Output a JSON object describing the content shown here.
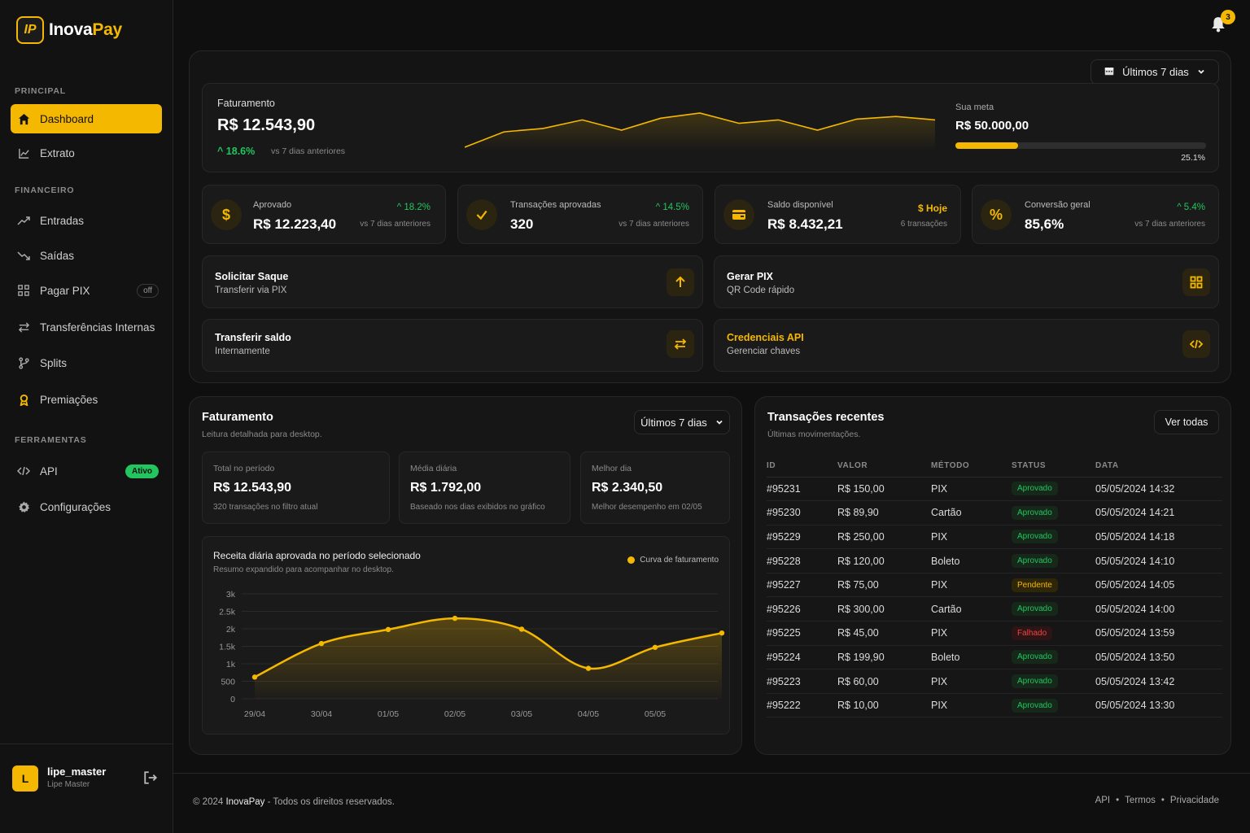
{
  "app": {
    "brand_a": "Inova",
    "brand_b": "Pay",
    "logo_letter": "IP"
  },
  "sidebar": {
    "sections": {
      "principal": "PRINCIPAL",
      "financeiro": "FINANCEIRO",
      "ferramentas": "FERRAMENTAS"
    },
    "items": [
      {
        "label": "Dashboard",
        "icon": "home-icon",
        "active": true
      },
      {
        "label": "Extrato",
        "icon": "chart-line-icon"
      },
      {
        "label": "Entradas",
        "icon": "trend-up-icon"
      },
      {
        "label": "Saídas",
        "icon": "trend-down-icon"
      },
      {
        "label": "Pagar PIX",
        "icon": "grid-icon",
        "badge": "off"
      },
      {
        "label": "Transferências Internas",
        "icon": "arrows-icon"
      },
      {
        "label": "Splits",
        "icon": "branch-icon"
      },
      {
        "label": "Premiações",
        "icon": "award-icon"
      },
      {
        "label": "API",
        "icon": "code-icon",
        "badge": "Ativo"
      },
      {
        "label": "Configurações",
        "icon": "gear-icon"
      }
    ],
    "user": {
      "initial": "L",
      "name": "lipe_master",
      "role": "Lipe Master"
    }
  },
  "header": {
    "notifications": "3"
  },
  "filter": {
    "label": "Últimos 7 dias"
  },
  "revenue": {
    "title": "Faturamento",
    "value": "R$ 12.543,90",
    "change": "18.6%",
    "change_note": "vs 7 dias anteriores",
    "goal_label": "Sua meta",
    "goal_value": "R$ 50.000,00",
    "goal_pct_text": "25.1%",
    "goal_fraction": 0.251,
    "spark": [
      40,
      58,
      62,
      72,
      60,
      74,
      80,
      68,
      72,
      60,
      73,
      76,
      72
    ]
  },
  "stats": [
    {
      "label": "Aprovado",
      "value": "R$ 12.223,40",
      "badge": "18.2%",
      "note": "vs 7 dias anteriores",
      "icon": "dollar-icon"
    },
    {
      "label": "Transações aprovadas",
      "value": "320",
      "badge": "14.5%",
      "note": "vs 7 dias anteriores",
      "icon": "check-icon"
    },
    {
      "label": "Saldo disponível",
      "value": "R$ 8.432,21",
      "badge": "$ Hoje",
      "note": "6 transações",
      "icon": "wallet-icon"
    },
    {
      "label": "Conversão geral",
      "value": "85,6%",
      "badge": "5.4%",
      "note": "vs 7 dias anteriores",
      "icon": "percent-icon"
    }
  ],
  "actions": [
    {
      "title": "Solicitar Saque",
      "sub": "Transferir via PIX",
      "icon": "arrow-up-icon"
    },
    {
      "title": "Gerar PIX",
      "sub": "QR Code rápido",
      "icon": "qr-icon"
    },
    {
      "title": "Transferir saldo",
      "sub": "Internamente",
      "icon": "swap-icon"
    },
    {
      "title": "Credenciais API",
      "sub": "Gerenciar chaves",
      "icon": "code-icon"
    }
  ],
  "detail": {
    "title": "Faturamento",
    "subtitle": "Leitura detalhada para desktop.",
    "filter": "Últimos 7 dias",
    "minis": [
      {
        "label": "Total no período",
        "value": "R$ 12.543,90",
        "note": "320 transações no filtro atual"
      },
      {
        "label": "Média diária",
        "value": "R$ 1.792,00",
        "note": "Baseado nos dias exibidos no gráfico"
      },
      {
        "label": "Melhor dia",
        "value": "R$ 2.340,50",
        "note": "Melhor desempenho em 02/05"
      }
    ],
    "chart_title": "Receita diária aprovada no período selecionado",
    "chart_sub": "Resumo expandido para acompanhar no desktop.",
    "legend": "Curva de faturamento"
  },
  "chart_data": {
    "type": "area",
    "x": [
      "29/04",
      "30/04",
      "01/05",
      "02/05",
      "03/05",
      "04/05",
      "05/05",
      ""
    ],
    "yticks": [
      "0",
      "500",
      "1k",
      "1.5k",
      "2k",
      "2.5k",
      "3k"
    ],
    "ylim": [
      0,
      3000
    ],
    "series": [
      {
        "name": "Curva de faturamento",
        "values": [
          620,
          1580,
          1980,
          2300,
          1990,
          870,
          1470,
          1880
        ]
      }
    ],
    "grid": true,
    "legend_position": "top-right"
  },
  "transactions": {
    "title": "Transações recentes",
    "subtitle": "Últimas movimentações.",
    "see_all": "Ver todas",
    "columns": [
      "ID",
      "VALOR",
      "MÉTODO",
      "STATUS",
      "DATA"
    ],
    "rows": [
      {
        "id": "#95231",
        "value": "R$ 150,00",
        "method": "PIX",
        "status": "Aprovado",
        "kind": "ok",
        "date": "05/05/2024 14:32"
      },
      {
        "id": "#95230",
        "value": "R$ 89,90",
        "method": "Cartão",
        "status": "Aprovado",
        "kind": "ok",
        "date": "05/05/2024 14:21"
      },
      {
        "id": "#95229",
        "value": "R$ 250,00",
        "method": "PIX",
        "status": "Aprovado",
        "kind": "ok",
        "date": "05/05/2024 14:18"
      },
      {
        "id": "#95228",
        "value": "R$ 120,00",
        "method": "Boleto",
        "status": "Aprovado",
        "kind": "ok",
        "date": "05/05/2024 14:10"
      },
      {
        "id": "#95227",
        "value": "R$ 75,00",
        "method": "PIX",
        "status": "Pendente",
        "kind": "pend",
        "date": "05/05/2024 14:05"
      },
      {
        "id": "#95226",
        "value": "R$ 300,00",
        "method": "Cartão",
        "status": "Aprovado",
        "kind": "ok",
        "date": "05/05/2024 14:00"
      },
      {
        "id": "#95225",
        "value": "R$ 45,00",
        "method": "PIX",
        "status": "Falhado",
        "kind": "fail",
        "date": "05/05/2024 13:59"
      },
      {
        "id": "#95224",
        "value": "R$ 199,90",
        "method": "Boleto",
        "status": "Aprovado",
        "kind": "ok",
        "date": "05/05/2024 13:50"
      },
      {
        "id": "#95223",
        "value": "R$ 60,00",
        "method": "PIX",
        "status": "Aprovado",
        "kind": "ok",
        "date": "05/05/2024 13:42"
      },
      {
        "id": "#95222",
        "value": "R$ 10,00",
        "method": "PIX",
        "status": "Aprovado",
        "kind": "ok",
        "date": "05/05/2024 13:30"
      }
    ]
  },
  "footer": {
    "copy_a": "© 2024 ",
    "copy_b": "InovaPay",
    "copy_c": " - Todos os direitos reservados.",
    "links": [
      "API",
      "Termos",
      "Privacidade"
    ],
    "sep": "•"
  },
  "colors": {
    "accent": "#f5b800",
    "positive": "#22c55e",
    "negative": "#ef4444",
    "bg": "#0f0f0f"
  }
}
